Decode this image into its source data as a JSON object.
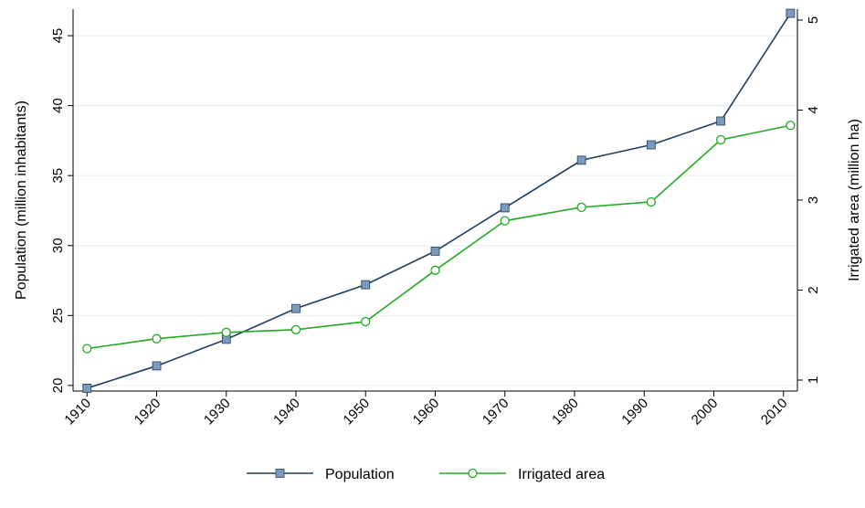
{
  "chart_data": {
    "type": "line",
    "x": [
      1910,
      1920,
      1930,
      1940,
      1950,
      1960,
      1970,
      1981,
      1991,
      2001,
      2011
    ],
    "x_ticks": [
      "1910",
      "1920",
      "1930",
      "1940",
      "1950",
      "1960",
      "1970",
      "1980",
      "1990",
      "2000",
      "2010"
    ],
    "x_tick_values": [
      1910,
      1920,
      1930,
      1940,
      1950,
      1960,
      1970,
      1980,
      1990,
      2000,
      2010
    ],
    "xlim": [
      1908,
      2012
    ],
    "xlabel": "",
    "y_left": {
      "label": "Population (million inhabitants)",
      "ticks": [
        "20",
        "25",
        "30",
        "35",
        "40",
        "45"
      ],
      "tick_values": [
        20,
        25,
        30,
        35,
        40,
        45
      ],
      "lim": [
        19.6,
        46.9
      ]
    },
    "y_right": {
      "label": "Irrigated area (million ha)",
      "ticks": [
        "1",
        "2",
        "3",
        "4",
        "5"
      ],
      "tick_values": [
        1,
        2,
        3,
        4,
        5
      ],
      "lim": [
        1,
        5
      ]
    },
    "series": [
      {
        "name": "Population",
        "axis": "left",
        "color": "#1f3f5f",
        "marker": "square",
        "marker_fill": "#7a9bbd",
        "values": [
          19.8,
          21.4,
          23.3,
          25.5,
          27.2,
          29.6,
          32.7,
          36.1,
          37.2,
          38.9,
          46.6
        ]
      },
      {
        "name": "Irrigated area",
        "axis": "right",
        "color": "#22aa22",
        "marker": "hollow-circle",
        "values": [
          1.35,
          1.46,
          1.53,
          1.56,
          1.65,
          2.22,
          2.77,
          2.92,
          2.98,
          3.67,
          3.83
        ]
      }
    ],
    "grid": true,
    "legend_position": "bottom-center"
  }
}
